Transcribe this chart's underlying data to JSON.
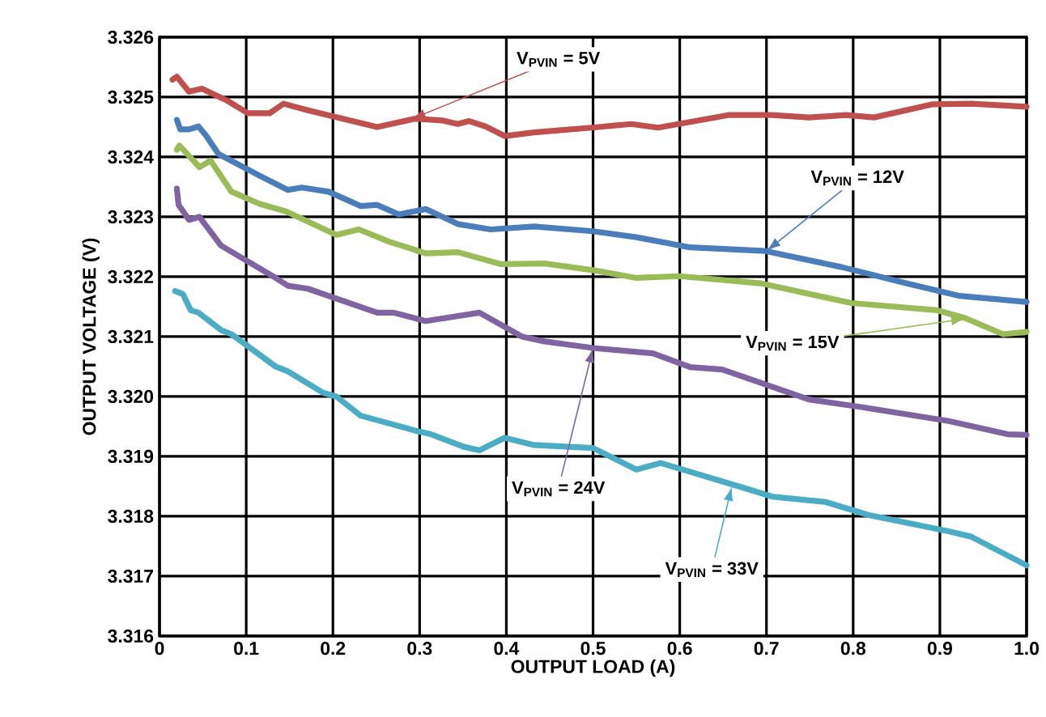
{
  "chart_data": {
    "type": "line",
    "xlabel": "OUTPUT LOAD (A)",
    "ylabel": "OUTPUT VOLTAGE (V)",
    "xlim": [
      0,
      1
    ],
    "ylim": [
      3.316,
      3.326
    ],
    "xticks": [
      0,
      0.1,
      0.2,
      0.3,
      0.4,
      0.5,
      0.6,
      0.7,
      0.8,
      0.9,
      {
        "value": 1,
        "label": "1.0"
      }
    ],
    "yticks": [
      3.316,
      3.317,
      3.318,
      3.319,
      {
        "value": 3.32,
        "label": "3.320"
      },
      3.321,
      3.322,
      3.323,
      3.324,
      3.325,
      3.326
    ],
    "grid": true,
    "line_style": "solid",
    "series": [
      {
        "color": "#c0504d",
        "x": [
          0.015,
          0.02,
          0.034,
          0.049,
          0.077,
          0.102,
          0.127,
          0.143,
          0.171,
          0.251,
          0.295,
          0.326,
          0.344,
          0.357,
          0.376,
          0.398,
          0.432,
          0.506,
          0.544,
          0.575,
          0.656,
          0.706,
          0.749,
          0.792,
          0.824,
          0.892,
          0.936,
          1.0
        ],
        "values": [
          3.32529,
          3.32534,
          3.32509,
          3.32514,
          3.32495,
          3.32473,
          3.32473,
          3.32489,
          3.32478,
          3.3245,
          3.32464,
          3.32461,
          3.32455,
          3.3246,
          3.32451,
          3.32435,
          3.32441,
          3.3245,
          3.32455,
          3.32449,
          3.3247,
          3.3247,
          3.32466,
          3.3247,
          3.32466,
          3.32488,
          3.32489,
          3.32484
        ]
      },
      {
        "color": "#4a7ebb",
        "x": [
          0.02,
          0.024,
          0.034,
          0.045,
          0.053,
          0.068,
          0.115,
          0.148,
          0.164,
          0.195,
          0.232,
          0.251,
          0.276,
          0.307,
          0.344,
          0.382,
          0.432,
          0.5,
          0.55,
          0.612,
          0.699,
          0.787,
          0.861,
          0.923,
          1.0
        ],
        "values": [
          3.32462,
          3.32446,
          3.32446,
          3.32451,
          3.32437,
          3.32405,
          3.32369,
          3.32345,
          3.32349,
          3.32342,
          3.32318,
          3.3232,
          3.32304,
          3.32313,
          3.32288,
          3.32279,
          3.32284,
          3.32276,
          3.32266,
          3.32249,
          3.32243,
          3.32216,
          3.32189,
          3.32168,
          3.32158
        ]
      },
      {
        "color": "#9bbb59",
        "x": [
          0.02,
          0.023,
          0.046,
          0.059,
          0.083,
          0.115,
          0.146,
          0.204,
          0.23,
          0.264,
          0.307,
          0.344,
          0.394,
          0.444,
          0.5,
          0.55,
          0.6,
          0.693,
          0.798,
          0.897,
          0.929,
          0.973,
          1.0
        ],
        "values": [
          3.32412,
          3.32419,
          3.32383,
          3.32394,
          3.32342,
          3.32322,
          3.32309,
          3.3227,
          3.32279,
          3.32259,
          3.32239,
          3.32241,
          3.32221,
          3.32222,
          3.32211,
          3.32198,
          3.32201,
          3.32189,
          3.32156,
          3.32144,
          3.32131,
          3.32104,
          3.32108
        ]
      },
      {
        "color": "#8064a2",
        "x": [
          0.02,
          0.022,
          0.034,
          0.046,
          0.071,
          0.134,
          0.148,
          0.171,
          0.251,
          0.27,
          0.307,
          0.369,
          0.418,
          0.444,
          0.5,
          0.569,
          0.612,
          0.649,
          0.749,
          0.811,
          0.91,
          0.978,
          1.0
        ],
        "values": [
          3.32347,
          3.3232,
          3.32295,
          3.323,
          3.32252,
          3.32198,
          3.32185,
          3.3218,
          3.3214,
          3.3214,
          3.32126,
          3.3214,
          3.321,
          3.32092,
          3.32081,
          3.32072,
          3.32049,
          3.32045,
          3.31995,
          3.31982,
          3.31959,
          3.31937,
          3.31936
        ]
      },
      {
        "color": "#4bacc6",
        "x": [
          0.018,
          0.027,
          0.036,
          0.045,
          0.071,
          0.083,
          0.134,
          0.148,
          0.189,
          0.204,
          0.232,
          0.295,
          0.313,
          0.351,
          0.369,
          0.398,
          0.432,
          0.5,
          0.55,
          0.578,
          0.675,
          0.706,
          0.768,
          0.818,
          0.91,
          0.936,
          1.0
        ],
        "values": [
          3.32176,
          3.32171,
          3.32144,
          3.3214,
          3.32111,
          3.32104,
          3.3205,
          3.32042,
          3.32006,
          3.32,
          3.31968,
          3.31943,
          3.31937,
          3.31916,
          3.3191,
          3.31931,
          3.31919,
          3.31914,
          3.31878,
          3.31889,
          3.31847,
          3.31833,
          3.31824,
          3.31802,
          3.31775,
          3.31766,
          3.31718
        ]
      }
    ],
    "annotations": [
      {
        "text": "V$_{PVIN}$ = 5V",
        "x": 0.29,
        "y": 3.32463
      },
      {
        "text": "V$_{PVIN}$ = 12V",
        "x": 0.7,
        "y": 3.32243
      },
      {
        "text": "V$_{PVIN}$ = 15V",
        "x": 0.93,
        "y": 3.3213
      },
      {
        "text": "V$_{PVIN}$ = 24V",
        "x": 0.5,
        "y": 3.32081
      },
      {
        "text": "V$_{PVIN}$ = 33V",
        "x": 0.66,
        "y": 3.3185
      }
    ]
  }
}
